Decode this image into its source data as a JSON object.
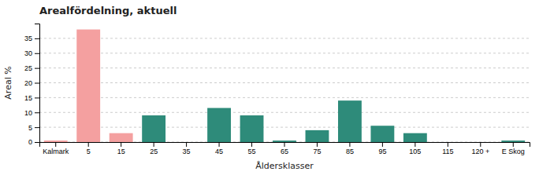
{
  "chart_data": {
    "type": "bar",
    "title": "Arealfördelning, aktuell",
    "xlabel": "Åldersklasser",
    "ylabel": "Areal %",
    "categories": [
      "Kalmark",
      "5",
      "15",
      "25",
      "35",
      "45",
      "55",
      "65",
      "75",
      "85",
      "95",
      "105",
      "115",
      "120 +",
      "E Skog"
    ],
    "values": [
      0.5,
      38.0,
      3.0,
      9.0,
      0.0,
      11.5,
      9.0,
      0.5,
      4.0,
      14.0,
      5.5,
      3.0,
      0.0,
      0.0,
      0.5
    ],
    "colors": [
      "#f4a0a0",
      "#f4a0a0",
      "#f4a0a0",
      "#2e8b7a",
      "#2e8b7a",
      "#2e8b7a",
      "#2e8b7a",
      "#2e8b7a",
      "#2e8b7a",
      "#2e8b7a",
      "#2e8b7a",
      "#2e8b7a",
      "#2e8b7a",
      "#2e8b7a",
      "#2e8b7a"
    ],
    "ylim": [
      0,
      40
    ],
    "yticks": [
      0,
      5,
      10,
      15,
      20,
      25,
      30,
      35
    ],
    "grid": true
  }
}
